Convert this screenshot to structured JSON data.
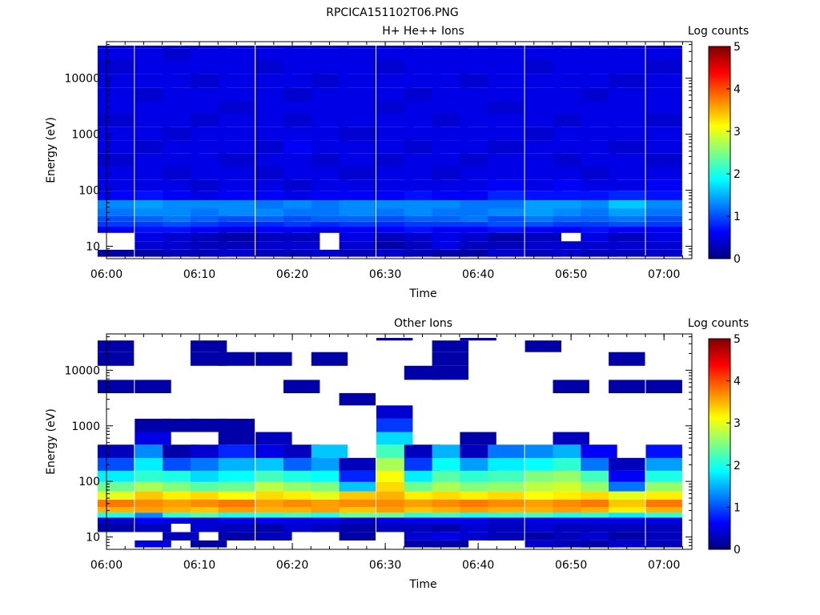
{
  "figure": {
    "title": "RPCICA151102T06.PNG"
  },
  "colorbar": {
    "colors": [
      "#000080",
      "#0000ff",
      "#0080ff",
      "#00ffff",
      "#80ff80",
      "#ffff00",
      "#ff8000",
      "#ff0000",
      "#800000"
    ]
  },
  "chart_data": [
    {
      "type": "heatmap",
      "title": "H+ He++ Ions",
      "xlabel": "Time",
      "ylabel": "Energy (eV)",
      "colorbar_label": "Log counts",
      "xlim": [
        "06:00",
        "07:03"
      ],
      "x_ticks": [
        "06:00",
        "06:10",
        "06:20",
        "06:30",
        "06:40",
        "06:50",
        "07:00"
      ],
      "y_scale": "log",
      "ylim": [
        6,
        45000
      ],
      "y_ticks": [
        "10",
        "100",
        "1000",
        "10000"
      ],
      "colorbar_range": [
        0,
        5
      ],
      "colorbar_ticks": [
        "0",
        "1",
        "2",
        "3",
        "4",
        "5"
      ],
      "time_bins": [
        "06:01",
        "06:05",
        "06:08",
        "06:11",
        "06:14",
        "06:18",
        "06:21",
        "06:24",
        "06:27",
        "06:31",
        "06:34",
        "06:37",
        "06:40",
        "06:43",
        "06:47",
        "06:50",
        "06:53",
        "06:56",
        "07:00"
      ],
      "energy_bins": [
        7.5,
        10,
        15,
        20,
        25,
        30,
        40,
        55,
        80,
        120,
        200,
        350,
        600,
        1000,
        1800,
        3000,
        5000,
        9000,
        16000,
        28000,
        42000
      ],
      "log_counts": [
        [
          0.2,
          0.2,
          0.3,
          0.3,
          0.4,
          0.3,
          0.3,
          0.4,
          0.3,
          0.4,
          0.3,
          0.2,
          0.2,
          0.4,
          0.3,
          0.4,
          0.3,
          0.3,
          0.4
        ],
        [
          null,
          0.4,
          0.4,
          0.3,
          0.3,
          0.4,
          0.4,
          null,
          0.4,
          0.2,
          0.3,
          0.5,
          0.3,
          0.3,
          0.4,
          0.4,
          0.4,
          0.4,
          0.4
        ],
        [
          null,
          0.5,
          0.4,
          0.3,
          0.2,
          0.3,
          0.3,
          null,
          0.5,
          0.3,
          0.4,
          0.5,
          0.4,
          0.2,
          0.3,
          null,
          0.5,
          0.3,
          0.5
        ],
        [
          0.6,
          0.7,
          0.7,
          0.6,
          0.5,
          0.6,
          0.6,
          0.5,
          0.6,
          0.6,
          0.7,
          0.6,
          0.6,
          0.7,
          0.6,
          0.6,
          0.7,
          0.6,
          0.6
        ],
        [
          0.9,
          0.9,
          1.0,
          0.9,
          0.8,
          0.8,
          0.9,
          0.8,
          0.9,
          0.8,
          0.9,
          0.9,
          0.9,
          1.0,
          1.0,
          0.9,
          0.9,
          1.0,
          0.9
        ],
        [
          1.0,
          1.1,
          1.2,
          1.1,
          1.0,
          1.1,
          1.0,
          1.1,
          1.1,
          1.0,
          1.1,
          1.1,
          1.2,
          1.0,
          1.2,
          1.1,
          1.1,
          1.2,
          1.0
        ],
        [
          1.2,
          1.3,
          1.3,
          1.2,
          1.3,
          1.3,
          1.2,
          1.2,
          1.3,
          1.2,
          1.3,
          1.2,
          1.2,
          1.3,
          1.4,
          1.3,
          1.2,
          1.4,
          1.2
        ],
        [
          1.3,
          1.4,
          1.3,
          1.3,
          1.3,
          1.2,
          1.3,
          1.2,
          1.3,
          1.3,
          1.3,
          1.3,
          1.2,
          1.2,
          1.4,
          1.4,
          1.3,
          1.6,
          1.3
        ],
        [
          0.6,
          0.7,
          0.6,
          0.5,
          0.6,
          0.6,
          0.5,
          0.6,
          0.6,
          0.6,
          0.7,
          0.6,
          0.6,
          0.8,
          0.7,
          0.7,
          0.7,
          0.8,
          0.7
        ],
        [
          0.5,
          0.5,
          0.5,
          0.4,
          0.5,
          0.5,
          0.4,
          0.5,
          0.5,
          0.5,
          0.5,
          0.5,
          0.5,
          0.6,
          0.5,
          0.6,
          0.5,
          0.5,
          0.6
        ],
        [
          0.5,
          0.5,
          0.4,
          0.5,
          0.5,
          0.4,
          0.5,
          0.5,
          0.4,
          0.5,
          0.5,
          0.4,
          0.5,
          0.5,
          0.5,
          0.5,
          0.4,
          0.5,
          0.5
        ],
        [
          0.4,
          0.5,
          0.5,
          0.5,
          0.4,
          0.5,
          0.5,
          0.4,
          0.5,
          0.4,
          0.5,
          0.5,
          0.4,
          0.5,
          0.5,
          0.4,
          0.5,
          0.5,
          0.4
        ],
        [
          0.5,
          0.4,
          0.5,
          0.5,
          0.5,
          0.4,
          0.6,
          0.5,
          0.5,
          0.5,
          0.4,
          0.5,
          0.5,
          0.4,
          0.5,
          0.5,
          0.5,
          0.4,
          0.5
        ],
        [
          0.5,
          0.5,
          0.4,
          0.5,
          0.5,
          0.5,
          0.5,
          0.5,
          0.4,
          0.5,
          0.5,
          0.5,
          0.5,
          0.5,
          0.4,
          0.5,
          0.5,
          0.5,
          0.5
        ],
        [
          0.4,
          0.5,
          0.5,
          0.4,
          0.5,
          0.5,
          0.4,
          0.5,
          0.5,
          0.5,
          0.5,
          0.4,
          0.5,
          0.5,
          0.5,
          0.4,
          0.5,
          0.5,
          0.4
        ],
        [
          0.5,
          0.5,
          0.5,
          0.5,
          0.4,
          0.5,
          0.5,
          0.5,
          0.5,
          0.4,
          0.5,
          0.5,
          0.5,
          0.4,
          0.5,
          0.5,
          0.5,
          0.5,
          0.5
        ],
        [
          0.5,
          0.4,
          0.5,
          0.5,
          0.5,
          0.5,
          0.4,
          0.5,
          0.5,
          0.5,
          0.4,
          0.5,
          0.5,
          0.5,
          0.5,
          0.5,
          0.4,
          0.5,
          0.5
        ],
        [
          0.5,
          0.5,
          0.5,
          0.4,
          0.5,
          0.5,
          0.5,
          0.4,
          0.5,
          0.5,
          0.5,
          0.5,
          0.4,
          0.5,
          0.5,
          0.5,
          0.5,
          0.4,
          0.5
        ],
        [
          0.4,
          0.5,
          0.5,
          0.5,
          0.5,
          0.4,
          0.5,
          0.5,
          0.5,
          0.4,
          0.5,
          0.5,
          0.5,
          0.5,
          0.4,
          0.5,
          0.5,
          0.5,
          0.4
        ],
        [
          0.5,
          0.5,
          0.4,
          0.5,
          0.5,
          0.5,
          0.5,
          0.5,
          0.5,
          0.5,
          0.5,
          0.5,
          0.5,
          0.5,
          0.5,
          0.5,
          0.5,
          0.5,
          0.5
        ],
        [
          0.5,
          0.5,
          0.5,
          0.5,
          0.5,
          0.5,
          0.5,
          0.5,
          0.5,
          0.5,
          0.5,
          0.5,
          0.5,
          0.5,
          0.5,
          0.5,
          0.5,
          0.5,
          0.5
        ]
      ]
    },
    {
      "type": "heatmap",
      "title": "Other Ions",
      "xlabel": "Time",
      "ylabel": "Energy (eV)",
      "colorbar_label": "Log counts",
      "xlim": [
        "06:00",
        "07:03"
      ],
      "x_ticks": [
        "06:00",
        "06:10",
        "06:20",
        "06:30",
        "06:40",
        "06:50",
        "07:00"
      ],
      "y_scale": "log",
      "ylim": [
        6,
        45000
      ],
      "y_ticks": [
        "10",
        "100",
        "1000",
        "10000"
      ],
      "colorbar_range": [
        0,
        5
      ],
      "colorbar_ticks": [
        "0",
        "1",
        "2",
        "3",
        "4",
        "5"
      ],
      "time_bins": [
        "06:01",
        "06:05",
        "06:08",
        "06:11",
        "06:14",
        "06:18",
        "06:21",
        "06:24",
        "06:27",
        "06:31",
        "06:34",
        "06:37",
        "06:40",
        "06:43",
        "06:47",
        "06:50",
        "06:53",
        "06:56",
        "07:00"
      ],
      "energy_bins": [
        7.5,
        10,
        15,
        20,
        25,
        30,
        40,
        55,
        80,
        120,
        200,
        350,
        600,
        1000,
        1800,
        3000,
        5000,
        9000,
        16000,
        28000,
        42000
      ],
      "log_counts": [
        [
          null,
          0.5,
          null,
          0.2,
          null,
          null,
          null,
          null,
          null,
          null,
          0.2,
          0.2,
          null,
          null,
          0.4,
          0.3,
          0.2,
          0.4,
          0.3
        ],
        [
          null,
          null,
          0.3,
          null,
          0.2,
          0.3,
          null,
          null,
          0.2,
          null,
          0.4,
          0.5,
          0.4,
          0.3,
          0.2,
          0.3,
          0.4,
          0.2,
          0.3
        ],
        [
          0.2,
          0.3,
          null,
          0.4,
          0.3,
          0.2,
          0.4,
          0.3,
          0.2,
          0.3,
          0.3,
          0.2,
          0.4,
          0.3,
          0.4,
          0.3,
          0.3,
          0.3,
          0.3
        ],
        [
          0.4,
          0.6,
          0.5,
          0.4,
          0.5,
          0.6,
          0.5,
          0.5,
          0.4,
          0.5,
          0.5,
          0.6,
          0.5,
          0.4,
          0.5,
          0.5,
          0.5,
          0.5,
          0.5
        ],
        [
          2.0,
          1.3,
          2.1,
          2.3,
          2.0,
          2.1,
          2.2,
          2.0,
          2.4,
          2.4,
          2.1,
          2.2,
          2.0,
          2.1,
          2.2,
          2.0,
          2.1,
          1.8,
          2.1
        ],
        [
          3.5,
          3.6,
          3.5,
          3.4,
          3.6,
          3.5,
          3.5,
          3.6,
          3.4,
          3.6,
          3.4,
          3.5,
          3.6,
          3.5,
          3.5,
          3.6,
          3.5,
          3.2,
          3.5
        ],
        [
          3.8,
          3.7,
          3.6,
          3.7,
          3.8,
          3.6,
          3.7,
          3.6,
          3.7,
          3.7,
          3.6,
          3.7,
          3.8,
          3.7,
          3.6,
          3.7,
          3.8,
          3.4,
          3.8
        ],
        [
          3.0,
          3.4,
          3.2,
          3.3,
          3.1,
          3.3,
          3.2,
          3.0,
          3.4,
          3.5,
          3.2,
          3.3,
          3.2,
          3.3,
          3.1,
          3.2,
          3.3,
          3.0,
          3.2
        ],
        [
          2.4,
          2.7,
          2.5,
          2.3,
          2.4,
          2.8,
          2.6,
          2.5,
          1.6,
          3.3,
          2.4,
          2.7,
          2.5,
          2.6,
          2.8,
          2.9,
          2.6,
          1.2,
          2.6
        ],
        [
          1.8,
          2.1,
          2.0,
          1.7,
          1.9,
          2.2,
          2.0,
          1.9,
          0.8,
          3.1,
          1.8,
          2.3,
          2.1,
          2.2,
          2.5,
          2.6,
          2.2,
          0.6,
          2.0
        ],
        [
          1.0,
          1.8,
          1.0,
          1.2,
          1.5,
          1.6,
          1.1,
          1.4,
          0.3,
          2.7,
          0.9,
          1.9,
          1.4,
          1.8,
          1.9,
          2.1,
          1.2,
          0.3,
          1.4
        ],
        [
          0.3,
          1.3,
          0.2,
          0.4,
          0.8,
          0.5,
          0.3,
          1.6,
          null,
          2.2,
          0.3,
          1.5,
          0.3,
          1.2,
          1.3,
          1.5,
          0.6,
          null,
          0.7
        ],
        [
          null,
          0.5,
          null,
          null,
          0.2,
          0.3,
          null,
          null,
          null,
          1.7,
          null,
          null,
          0.2,
          null,
          null,
          0.3,
          null,
          null,
          null
        ],
        [
          null,
          0.2,
          0.2,
          0.2,
          0.2,
          null,
          null,
          null,
          null,
          0.9,
          null,
          null,
          null,
          null,
          null,
          null,
          null,
          null,
          null
        ],
        [
          null,
          null,
          null,
          null,
          null,
          null,
          null,
          null,
          null,
          0.4,
          null,
          null,
          null,
          null,
          null,
          null,
          null,
          null,
          null
        ],
        [
          null,
          null,
          null,
          null,
          null,
          null,
          null,
          null,
          0.2,
          null,
          null,
          null,
          null,
          null,
          null,
          null,
          null,
          null,
          null
        ],
        [
          0.2,
          0.2,
          null,
          null,
          null,
          null,
          0.2,
          null,
          null,
          null,
          null,
          null,
          null,
          null,
          null,
          0.2,
          null,
          0.2,
          0.2
        ],
        [
          null,
          null,
          null,
          null,
          null,
          null,
          null,
          null,
          null,
          null,
          0.2,
          0.2,
          null,
          null,
          null,
          null,
          null,
          null,
          null
        ],
        [
          0.2,
          null,
          null,
          0.2,
          0.2,
          0.2,
          null,
          0.2,
          null,
          null,
          null,
          0.2,
          null,
          null,
          null,
          null,
          null,
          0.2,
          null
        ],
        [
          0.2,
          null,
          null,
          0.2,
          null,
          null,
          null,
          null,
          null,
          null,
          null,
          0.2,
          null,
          null,
          0.2,
          null,
          null,
          null,
          null
        ],
        [
          null,
          null,
          null,
          null,
          null,
          null,
          null,
          null,
          null,
          0.2,
          null,
          null,
          0.2,
          null,
          null,
          null,
          null,
          null,
          null
        ]
      ]
    }
  ]
}
